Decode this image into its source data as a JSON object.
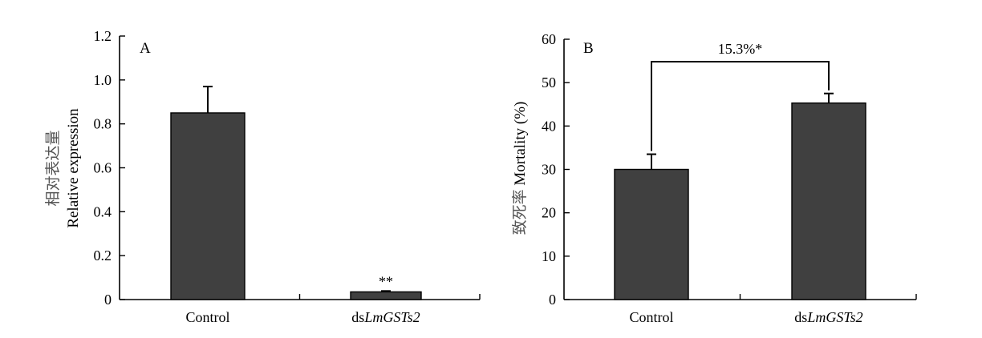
{
  "chart_data": [
    {
      "type": "bar",
      "panel_label": "A",
      "categories": [
        {
          "prefix": "",
          "italic": "",
          "full": "Control"
        },
        {
          "prefix": "ds",
          "italic": "LmGSTs2",
          "full": "dsLmGSTs2"
        }
      ],
      "values": [
        0.85,
        0.035
      ],
      "errors": [
        0.12,
        0.004
      ],
      "ylabel_cn": "相对表达量",
      "ylabel": "Relative expression",
      "ylim": [
        0,
        1.2
      ],
      "yticks": [
        "0",
        "0.2",
        "0.4",
        "0.6",
        "0.8",
        "1.0",
        "1.2"
      ],
      "ytick_values": [
        0,
        0.2,
        0.4,
        0.6,
        0.8,
        1.0,
        1.2
      ],
      "annotations": [
        {
          "bar": 1,
          "text": "**"
        }
      ],
      "bar_color": "#404040"
    },
    {
      "type": "bar",
      "panel_label": "B",
      "categories": [
        {
          "prefix": "",
          "italic": "",
          "full": "Control"
        },
        {
          "prefix": "ds",
          "italic": "LmGSTs2",
          "full": "dsLmGSTs2"
        }
      ],
      "values": [
        30.0,
        45.3
      ],
      "errors": [
        3.5,
        2.2
      ],
      "ylabel_cn": "致死率",
      "ylabel": "Mortality (%)",
      "ylim": [
        0,
        60
      ],
      "yticks": [
        "0",
        "10",
        "20",
        "30",
        "40",
        "50",
        "60"
      ],
      "ytick_values": [
        0,
        10,
        20,
        30,
        40,
        50,
        60
      ],
      "bracket_label": "15.3%*",
      "bar_color": "#404040"
    }
  ]
}
